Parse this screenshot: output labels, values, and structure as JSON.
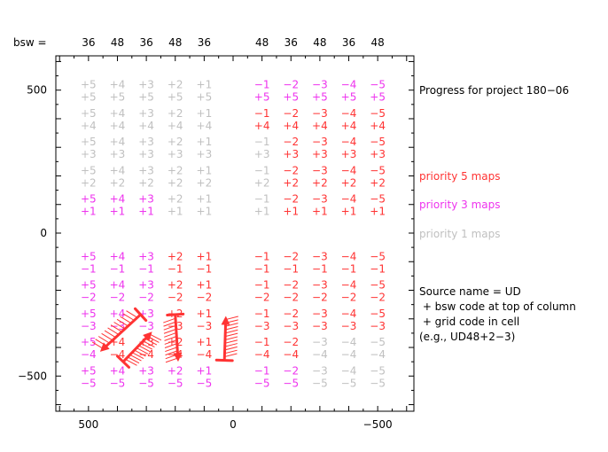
{
  "header": {
    "bsw_label": "bsw ="
  },
  "columns": {
    "bsw": [
      "36",
      "48",
      "36",
      "48",
      "36",
      "48",
      "36",
      "48",
      "36",
      "48"
    ],
    "grid_top": [
      "+5",
      "+4",
      "+3",
      "+2",
      "+1",
      "−1",
      "−2",
      "−3",
      "−4",
      "−5"
    ]
  },
  "rows": {
    "grid_bottom": [
      "+5",
      "+4",
      "+3",
      "+2",
      "+1",
      "−1",
      "−2",
      "−3",
      "−4",
      "−5"
    ]
  },
  "colors": {
    "grey": "#c0c0c0",
    "red": "#ff3333",
    "magenta": "#ee33ee",
    "axis": "#000000"
  },
  "status_matrix": [
    "GGGGGMMMMM",
    "GGGGGRRRRR",
    "GGGGGGRRRR",
    "GGGGGGRRRR",
    "MMMGGGRRRR",
    "MMMRRRRRRR",
    "MMMRRRRRRR",
    "MMMRRRRRRR",
    "MRRRRRRGGG",
    "MMMMMMMGGG"
  ],
  "legend": {
    "title": "Progress for project 180−06",
    "p5": "priority 5 maps",
    "p3": "priority 3 maps",
    "p1": "priority 1 maps",
    "note": [
      "Source name = UD",
      " + bsw code at top of column",
      " + grid code in cell",
      "(e.g., UD48+2−3)"
    ]
  },
  "chart_data": {
    "type": "table",
    "title": "Progress for project 180−06",
    "xlabel": "",
    "ylabel": "",
    "xlim": [
      620,
      -620
    ],
    "ylim": [
      -620,
      620
    ],
    "x_ticks": [
      500,
      0,
      -500
    ],
    "y_ticks": [
      500,
      0,
      -500
    ],
    "x_tick_labels": [
      "500",
      "0",
      "−500"
    ],
    "y_tick_labels": [
      "500",
      "0",
      "−500"
    ],
    "column_x": [
      500,
      400,
      300,
      200,
      100,
      -100,
      -200,
      -300,
      -400,
      -500
    ],
    "row_y": [
      500,
      400,
      300,
      200,
      100,
      -100,
      -200,
      -300,
      -400,
      -500
    ],
    "status_legend": {
      "R": "priority 5 maps",
      "M": "priority 3 maps",
      "G": "priority 1 maps"
    },
    "scan_arrows": [
      {
        "from": [
          320,
          -285
        ],
        "to": [
          460,
          -415
        ],
        "hatched": true
      },
      {
        "from": [
          380,
          -450
        ],
        "to": [
          280,
          -345
        ],
        "hatched": true
      },
      {
        "from": [
          200,
          -285
        ],
        "to": [
          190,
          -450
        ],
        "hatched": true
      },
      {
        "from": [
          30,
          -445
        ],
        "to": [
          25,
          -290
        ],
        "hatched": true
      }
    ]
  }
}
